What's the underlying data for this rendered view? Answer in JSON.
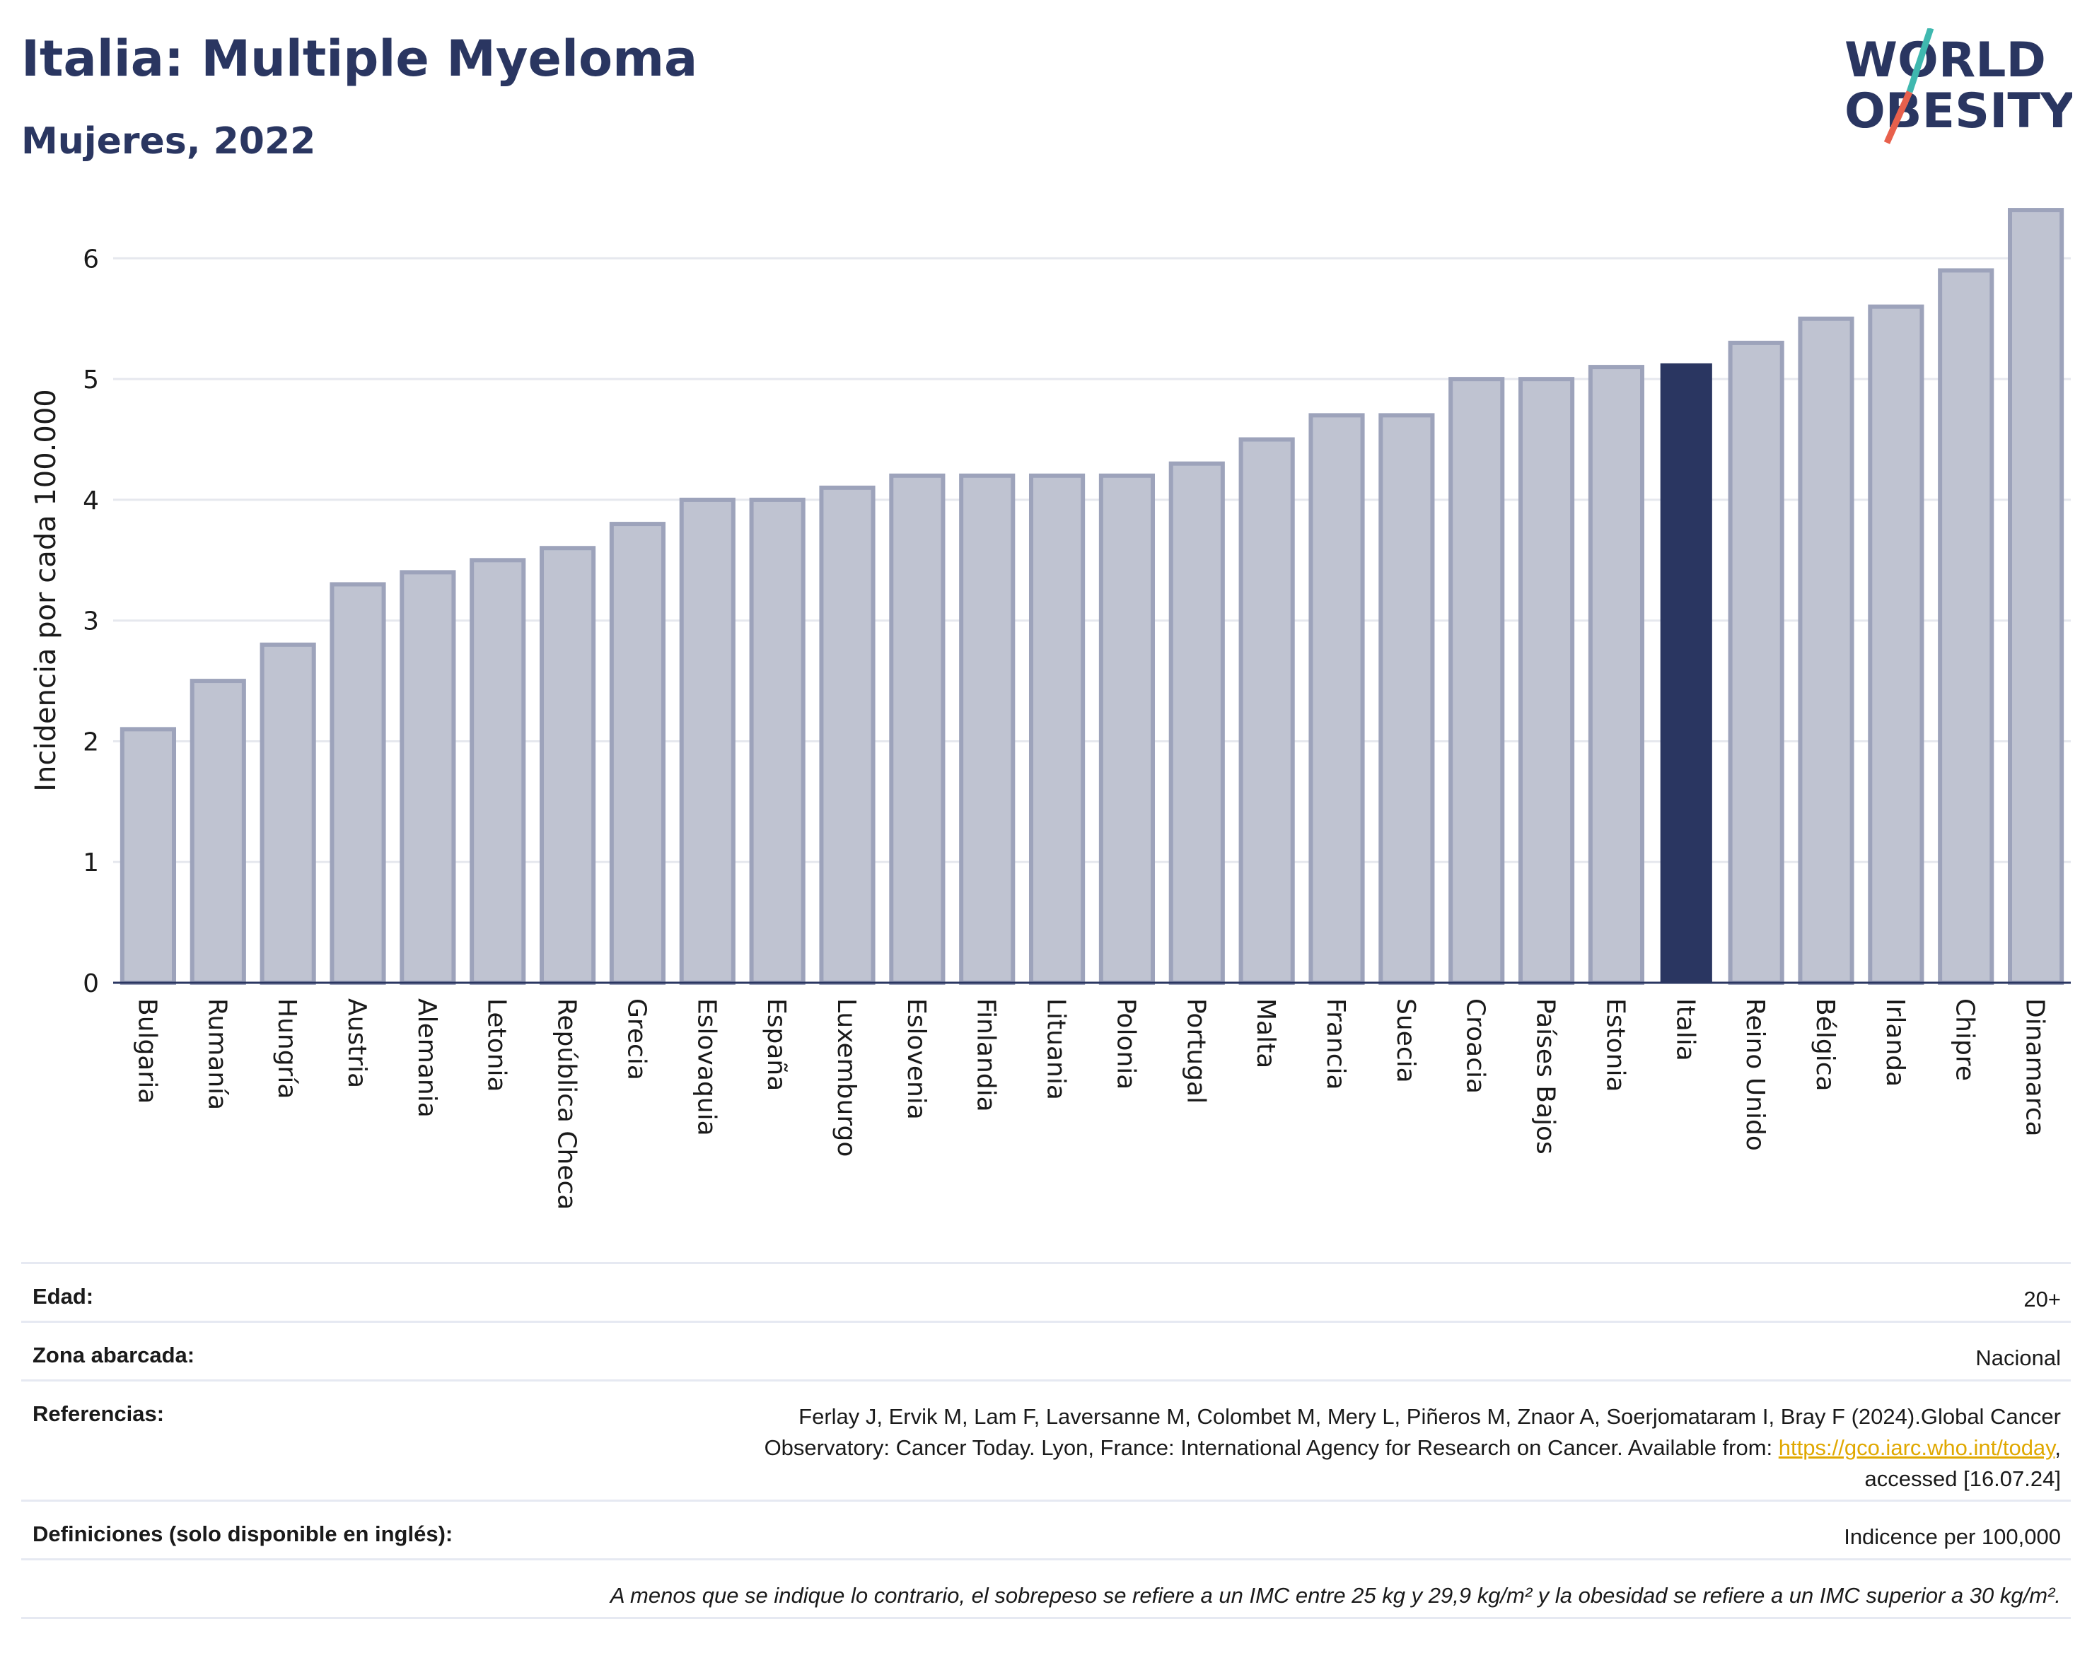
{
  "header": {
    "title": "Italia: Multiple Myeloma",
    "subtitle": "Mujeres, 2022"
  },
  "logo": {
    "line1": "WORLD",
    "line2": "OBESITY"
  },
  "colors": {
    "highlight_bar": "#2a3661",
    "other_bar_fill": "#bfc3d1",
    "other_bar_border": "#9da3bb",
    "accent_teal": "#3fb8af",
    "accent_red": "#e8604c",
    "link": "#e0a800"
  },
  "chart_data": {
    "type": "bar",
    "ylabel": "Incidencia por cada 100.000",
    "ylim": [
      0,
      6.5
    ],
    "yticks": [
      0,
      1,
      2,
      3,
      4,
      5,
      6
    ],
    "highlight": "Italia",
    "categories": [
      "Bulgaria",
      "Rumanía",
      "Hungría",
      "Austria",
      "Alemania",
      "Letonia",
      "República Checa",
      "Grecia",
      "Eslovaquia",
      "España",
      "Luxemburgo",
      "Eslovenia",
      "Finlandia",
      "Lituania",
      "Polonia",
      "Portugal",
      "Malta",
      "Francia",
      "Suecia",
      "Croacia",
      "Países Bajos",
      "Estonia",
      "Italia",
      "Reino Unido",
      "Bélgica",
      "Irlanda",
      "Chipre",
      "Dinamarca"
    ],
    "values": [
      2.1,
      2.5,
      2.8,
      3.3,
      3.4,
      3.5,
      3.6,
      3.8,
      4.0,
      4.0,
      4.1,
      4.2,
      4.2,
      4.2,
      4.2,
      4.3,
      4.5,
      4.7,
      4.7,
      5.0,
      5.0,
      5.1,
      5.13,
      5.3,
      5.5,
      5.6,
      5.9,
      6.4
    ]
  },
  "meta": {
    "edad_label": "Edad:",
    "edad_value": "20+",
    "zona_label": "Zona abarcada:",
    "zona_value": "Nacional",
    "ref_label": "Referencias:",
    "ref_line1": "Ferlay J, Ervik M, Lam F, Laversanne M, Colombet M, Mery L, Piñeros M, Znaor A, Soerjomataram I, Bray F (2024).Global Cancer",
    "ref_line2_pre": "Observatory: Cancer Today. Lyon, France: International Agency for Research on Cancer. Available from: ",
    "ref_link": "https://gco.iarc.who.int/today",
    "ref_line2_post": ",",
    "ref_line3": "accessed [16.07.24]",
    "def_label": "Definiciones (solo disponible en inglés):",
    "def_value": "Indicence per 100,000",
    "note": "A menos que se indique lo contrario, el sobrepeso se refiere a un IMC entre 25 kg y 29,9 kg/m² y la obesidad se refiere a un IMC superior a 30 kg/m²."
  }
}
